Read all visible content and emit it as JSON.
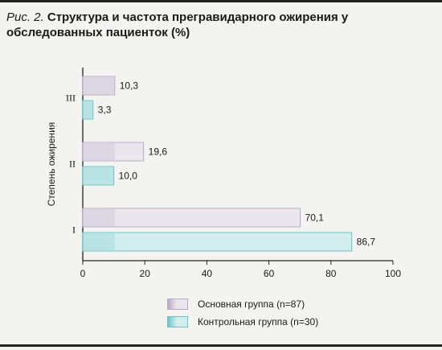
{
  "caption": {
    "prefix": "Рис. 2.",
    "title": "Структура и частота прегравидарного ожирения у обследованных пациенток (%)"
  },
  "colors": {
    "series1_fill": "#eae6ee",
    "series1_edge": "#b8a9c4",
    "series2_fill": "#d3eeee",
    "series2_edge": "#6cc2c6",
    "axis": "#222222",
    "background": "#f3f3f2"
  },
  "chart_data": {
    "type": "bar",
    "orientation": "horizontal",
    "title": "Структура и частота прегравидарного ожирения у обследованных пациенток (%)",
    "ylabel": "Степень ожирения",
    "xlabel": "",
    "categories": [
      "III",
      "II",
      "I"
    ],
    "series": [
      {
        "name": "Основная группа (n=87)",
        "values": [
          10.3,
          19.6,
          70.1
        ],
        "labels": [
          "10,3",
          "19,6",
          "70,1"
        ]
      },
      {
        "name": "Контрольная группа (n=30)",
        "values": [
          3.3,
          10.0,
          86.7
        ],
        "labels": [
          "3,3",
          "10,0",
          "86,7"
        ]
      }
    ],
    "xlim": [
      0,
      100
    ],
    "xticks": [
      0,
      20,
      40,
      60,
      80,
      100
    ],
    "grid": false,
    "legend_position": "bottom"
  }
}
